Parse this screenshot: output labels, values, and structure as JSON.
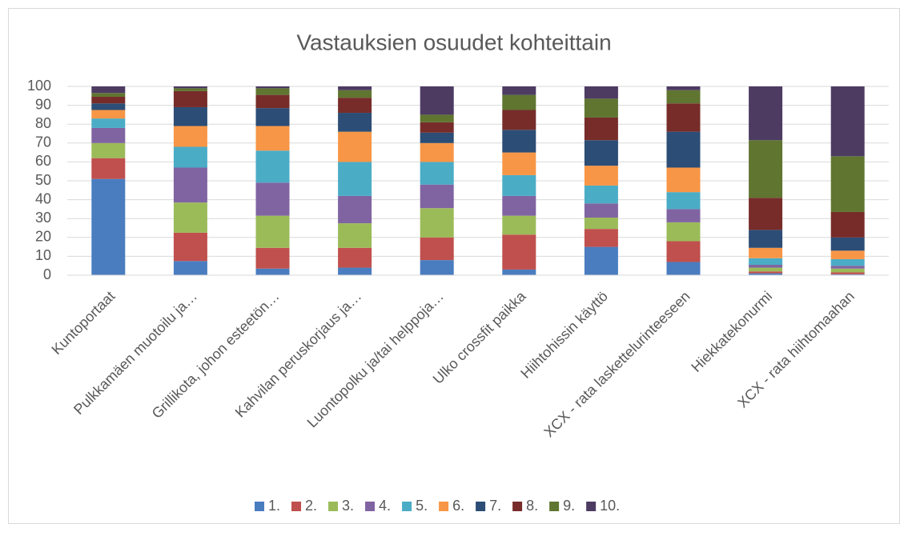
{
  "chart_data": {
    "type": "stacked_bar",
    "title": "Vastauksien osuudet kohteittain",
    "categories": [
      "Kuntoportaat",
      "Pulkkamäen muotoilu ja…",
      "Grillikota, johon esteetön…",
      "Kahvilan peruskorjaus ja…",
      "Luontopolku ja/tai helppoja…",
      "Ulko crossfit paikka",
      "Hiihtohissin käyttö",
      "XCX - rata laskettelurinteeseen",
      "Hiekkatekonurmi",
      "XCX - rata hiihtomaahan"
    ],
    "series": [
      {
        "name": "1.",
        "color": "#4a7dc0",
        "values": [
          51,
          7.5,
          3.5,
          4,
          8,
          3,
          15,
          7,
          1,
          0.5
        ]
      },
      {
        "name": "2.",
        "color": "#c0504d",
        "values": [
          11,
          15,
          11,
          10.5,
          12,
          18.5,
          9.5,
          11,
          1,
          1
        ]
      },
      {
        "name": "3.",
        "color": "#9bbb59",
        "values": [
          8,
          16,
          17,
          13,
          15.5,
          10,
          6,
          10,
          2,
          2
        ]
      },
      {
        "name": "4.",
        "color": "#8064a2",
        "values": [
          8,
          18.5,
          17.5,
          14.5,
          12.5,
          10.5,
          7.5,
          7,
          1.5,
          1.5
        ]
      },
      {
        "name": "5.",
        "color": "#4bacc6",
        "values": [
          5,
          11,
          17,
          18,
          12,
          11,
          9.5,
          9,
          3.5,
          3.5
        ]
      },
      {
        "name": "6.",
        "color": "#f79646",
        "values": [
          4.5,
          11,
          13,
          16,
          10,
          12,
          10.5,
          13,
          5.5,
          4.5
        ]
      },
      {
        "name": "7.",
        "color": "#2c4d75",
        "values": [
          3.5,
          10,
          9.5,
          10,
          5.5,
          12,
          13.5,
          19,
          9.5,
          7
        ]
      },
      {
        "name": "8.",
        "color": "#772c2a",
        "values": [
          3.5,
          8.5,
          7,
          8,
          5.5,
          10.5,
          12,
          15,
          17,
          13.5
        ]
      },
      {
        "name": "9.",
        "color": "#5f7530",
        "values": [
          2,
          1.5,
          3.5,
          4,
          4,
          8,
          10,
          7,
          30.5,
          29.5
        ]
      },
      {
        "name": "10.",
        "color": "#4d3b62",
        "values": [
          3.5,
          1,
          1,
          2,
          15,
          4.5,
          6.5,
          2,
          28.5,
          37
        ]
      }
    ],
    "ylim": [
      0,
      100
    ],
    "yticks": [
      0,
      10,
      20,
      30,
      40,
      50,
      60,
      70,
      80,
      90,
      100
    ],
    "grid": true,
    "legend": "bottom"
  }
}
